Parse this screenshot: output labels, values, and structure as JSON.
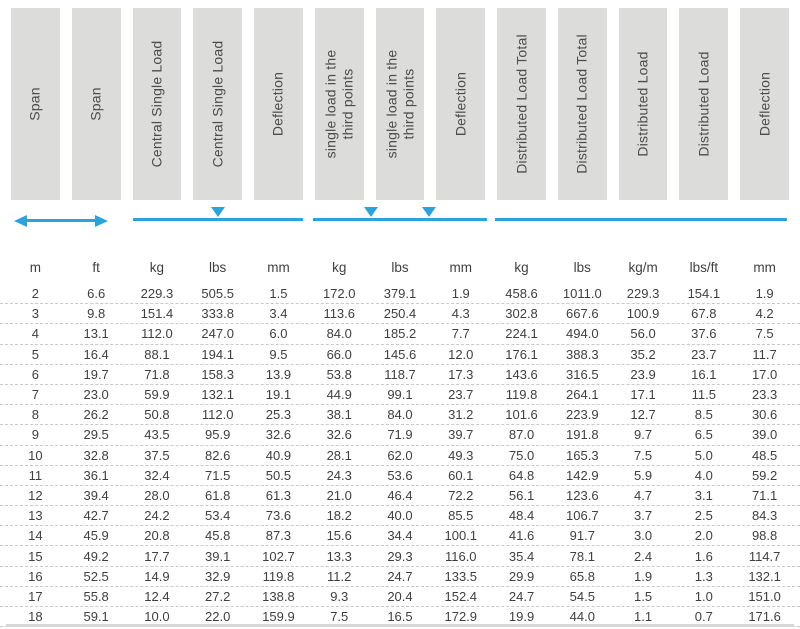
{
  "colors": {
    "accent_blue": "#29a4dc",
    "header_bg": "#dcdcda",
    "header_text": "#4c4c4e",
    "data_text": "#3f3f41"
  },
  "table": {
    "headers": [
      "Span",
      "Span",
      "Central Single Load",
      "Central Single Load",
      "Deflection",
      "single load in the\nthird points",
      "single load in the\nthird points",
      "Deflection",
      "Distributed Load Total",
      "Distributed Load Total",
      "Distributed Load",
      "Distributed Load",
      "Deflection"
    ],
    "load_diagrams": [
      {
        "name": "span-extent",
        "style": "double-headed-arrow",
        "columns": "1-2"
      },
      {
        "name": "central-single-load",
        "style": "line-with-one-triangle-at-center",
        "columns": "3-5"
      },
      {
        "name": "third-point-loads",
        "style": "line-with-two-triangles-at-thirds",
        "columns": "6-8"
      },
      {
        "name": "distributed-load",
        "style": "plain-line",
        "columns": "9-13"
      }
    ],
    "units": [
      "m",
      "ft",
      "kg",
      "lbs",
      "mm",
      "kg",
      "lbs",
      "mm",
      "kg",
      "lbs",
      "kg/m",
      "lbs/ft",
      "mm"
    ],
    "rows": [
      [
        "2",
        "6.6",
        "229.3",
        "505.5",
        "1.5",
        "172.0",
        "379.1",
        "1.9",
        "458.6",
        "1011.0",
        "229.3",
        "154.1",
        "1.9"
      ],
      [
        "3",
        "9.8",
        "151.4",
        "333.8",
        "3.4",
        "113.6",
        "250.4",
        "4.3",
        "302.8",
        "667.6",
        "100.9",
        "67.8",
        "4.2"
      ],
      [
        "4",
        "13.1",
        "112.0",
        "247.0",
        "6.0",
        "84.0",
        "185.2",
        "7.7",
        "224.1",
        "494.0",
        "56.0",
        "37.6",
        "7.5"
      ],
      [
        "5",
        "16.4",
        "88.1",
        "194.1",
        "9.5",
        "66.0",
        "145.6",
        "12.0",
        "176.1",
        "388.3",
        "35.2",
        "23.7",
        "11.7"
      ],
      [
        "6",
        "19.7",
        "71.8",
        "158.3",
        "13.9",
        "53.8",
        "118.7",
        "17.3",
        "143.6",
        "316.5",
        "23.9",
        "16.1",
        "17.0"
      ],
      [
        "7",
        "23.0",
        "59.9",
        "132.1",
        "19.1",
        "44.9",
        "99.1",
        "23.7",
        "119.8",
        "264.1",
        "17.1",
        "11.5",
        "23.3"
      ],
      [
        "8",
        "26.2",
        "50.8",
        "112.0",
        "25.3",
        "38.1",
        "84.0",
        "31.2",
        "101.6",
        "223.9",
        "12.7",
        "8.5",
        "30.6"
      ],
      [
        "9",
        "29.5",
        "43.5",
        "95.9",
        "32.6",
        "32.6",
        "71.9",
        "39.7",
        "87.0",
        "191.8",
        "9.7",
        "6.5",
        "39.0"
      ],
      [
        "10",
        "32.8",
        "37.5",
        "82.6",
        "40.9",
        "28.1",
        "62.0",
        "49.3",
        "75.0",
        "165.3",
        "7.5",
        "5.0",
        "48.5"
      ],
      [
        "11",
        "36.1",
        "32.4",
        "71.5",
        "50.5",
        "24.3",
        "53.6",
        "60.1",
        "64.8",
        "142.9",
        "5.9",
        "4.0",
        "59.2"
      ],
      [
        "12",
        "39.4",
        "28.0",
        "61.8",
        "61.3",
        "21.0",
        "46.4",
        "72.2",
        "56.1",
        "123.6",
        "4.7",
        "3.1",
        "71.1"
      ],
      [
        "13",
        "42.7",
        "24.2",
        "53.4",
        "73.6",
        "18.2",
        "40.0",
        "85.5",
        "48.4",
        "106.7",
        "3.7",
        "2.5",
        "84.3"
      ],
      [
        "14",
        "45.9",
        "20.8",
        "45.8",
        "87.3",
        "15.6",
        "34.4",
        "100.1",
        "41.6",
        "91.7",
        "3.0",
        "2.0",
        "98.8"
      ],
      [
        "15",
        "49.2",
        "17.7",
        "39.1",
        "102.7",
        "13.3",
        "29.3",
        "116.0",
        "35.4",
        "78.1",
        "2.4",
        "1.6",
        "114.7"
      ],
      [
        "16",
        "52.5",
        "14.9",
        "32.9",
        "119.8",
        "11.2",
        "24.7",
        "133.5",
        "29.9",
        "65.8",
        "1.9",
        "1.3",
        "132.1"
      ],
      [
        "17",
        "55.8",
        "12.4",
        "27.2",
        "138.8",
        "9.3",
        "20.4",
        "152.4",
        "24.7",
        "54.5",
        "1.5",
        "1.0",
        "151.0"
      ],
      [
        "18",
        "59.1",
        "10.0",
        "22.0",
        "159.9",
        "7.5",
        "16.5",
        "172.9",
        "19.9",
        "44.0",
        "1.1",
        "0.7",
        "171.6"
      ]
    ]
  }
}
